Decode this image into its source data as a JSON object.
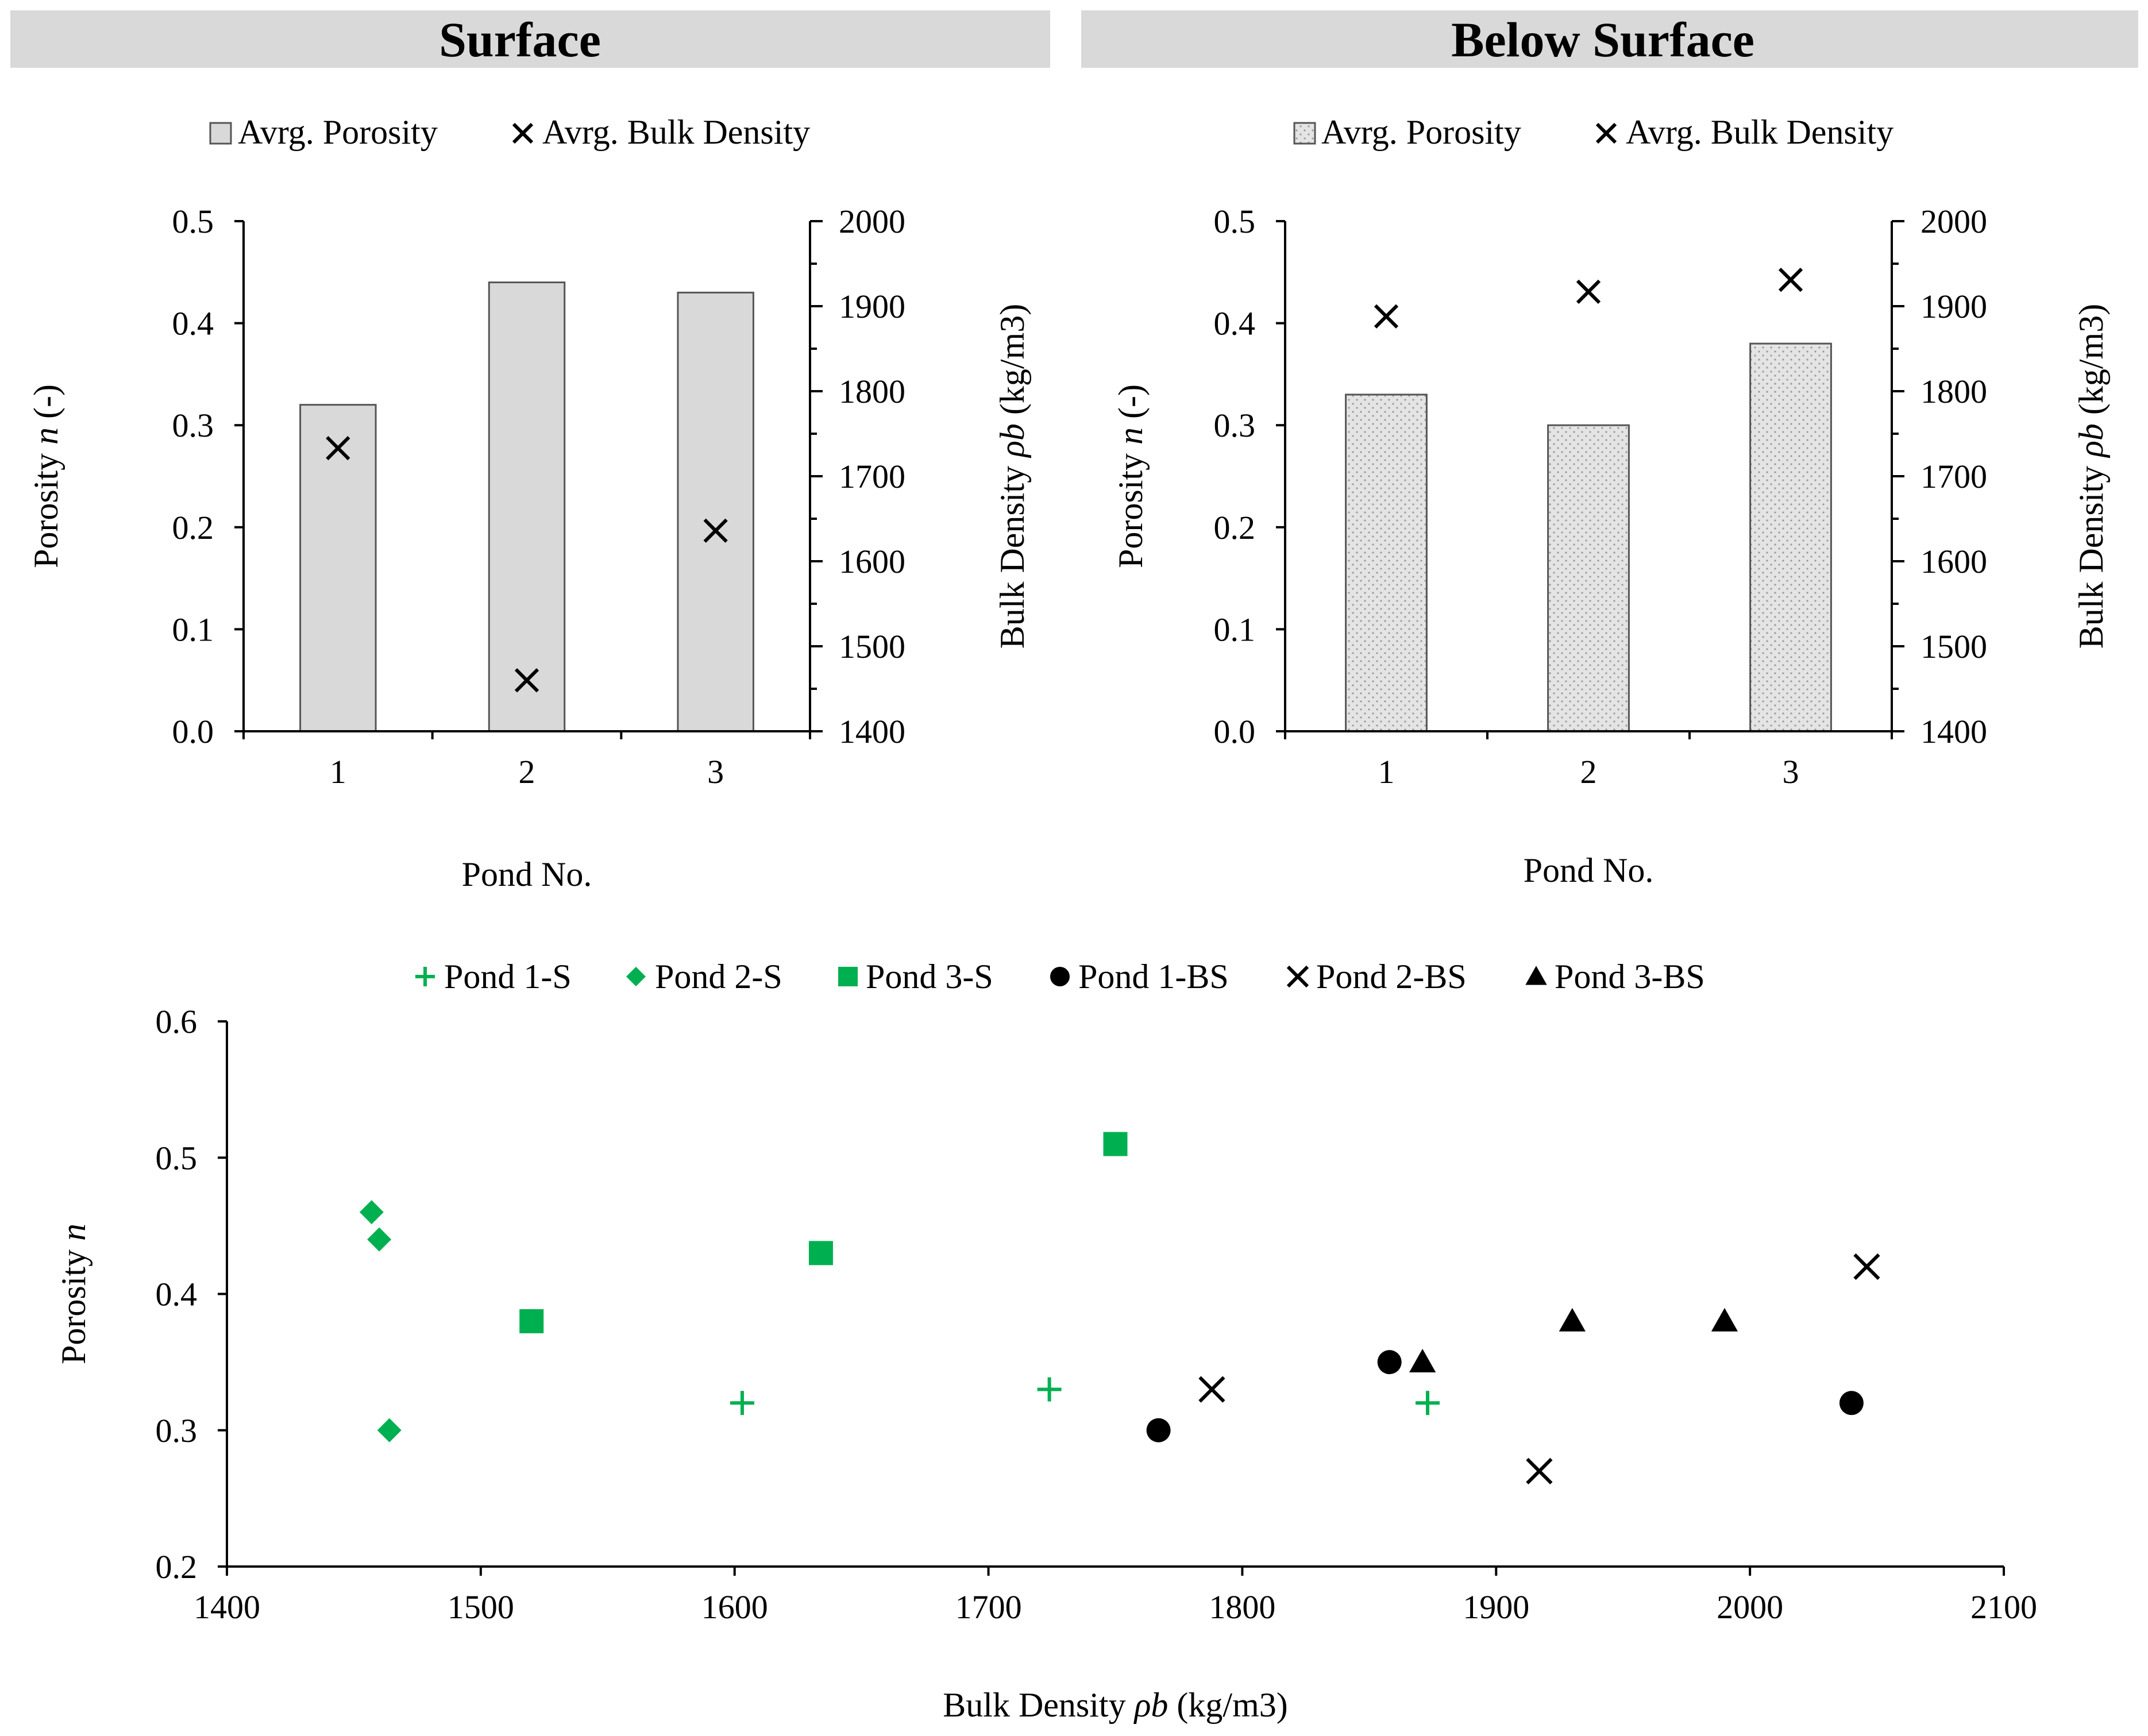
{
  "colors": {
    "green": "#00b050",
    "black": "#000000",
    "bar_fill": "#d9d9d9",
    "header_fill": "#d9d9d9"
  },
  "chart_data": [
    {
      "id": "surface",
      "type": "bar",
      "title": "Surface",
      "categories": [
        "1",
        "2",
        "3"
      ],
      "series": [
        {
          "name": "Avrg. Porosity",
          "kind": "bar",
          "axis": "left",
          "values": [
            0.32,
            0.44,
            0.43
          ]
        },
        {
          "name": "Avrg. Bulk Density",
          "kind": "marker",
          "marker": "x",
          "axis": "right",
          "values": [
            1733,
            1460,
            1636
          ]
        }
      ],
      "xlabel": "Pond No.",
      "ylabel_prefix": "Porosity ",
      "ylabel_var": "n",
      "ylabel_suffix": " (-)",
      "y2label_prefix": "Bulk Density ",
      "y2label_var": "ρb",
      "y2label_suffix": "  (kg/m3)",
      "ylim": [
        0,
        0.5
      ],
      "yticks": [
        "0.0",
        "0.1",
        "0.2",
        "0.3",
        "0.4",
        "0.5"
      ],
      "y2lim": [
        1400,
        2000
      ],
      "y2ticks": [
        "1400",
        "1500",
        "1600",
        "1700",
        "1800",
        "1900",
        "2000"
      ],
      "bar_pattern": "solid",
      "legend_position": "top"
    },
    {
      "id": "below",
      "type": "bar",
      "title": "Below Surface",
      "categories": [
        "1",
        "2",
        "3"
      ],
      "series": [
        {
          "name": "Avrg. Porosity",
          "kind": "bar",
          "axis": "left",
          "values": [
            0.33,
            0.3,
            0.38
          ]
        },
        {
          "name": "Avrg. Bulk Density",
          "kind": "marker",
          "marker": "x",
          "axis": "right",
          "values": [
            1888,
            1917,
            1931
          ]
        }
      ],
      "xlabel": "Pond No.",
      "ylabel_prefix": "Porosity ",
      "ylabel_var": "n",
      "ylabel_suffix": " (-)",
      "y2label_prefix": "Bulk Density ",
      "y2label_var": "ρb",
      "y2label_suffix": "  (kg/m3)",
      "ylim": [
        0,
        0.5
      ],
      "yticks": [
        "0.0",
        "0.1",
        "0.2",
        "0.3",
        "0.4",
        "0.5"
      ],
      "y2lim": [
        1400,
        2000
      ],
      "y2ticks": [
        "1400",
        "1500",
        "1600",
        "1700",
        "1800",
        "1900",
        "2000"
      ],
      "bar_pattern": "dotted",
      "legend_position": "top"
    },
    {
      "id": "scatter",
      "type": "scatter",
      "title": "",
      "xlabel_prefix": "Bulk Density ",
      "xlabel_var": "ρb",
      "xlabel_suffix": " (kg/m3)",
      "ylabel_prefix": "Porosity ",
      "ylabel_var": "n",
      "xlim": [
        1400,
        2100
      ],
      "xticks": [
        "1400",
        "1500",
        "1600",
        "1700",
        "1800",
        "1900",
        "2000",
        "2100"
      ],
      "ylim": [
        0.2,
        0.6
      ],
      "yticks": [
        "0.2",
        "0.3",
        "0.4",
        "0.5",
        "0.6"
      ],
      "legend_position": "top",
      "series": [
        {
          "name": "Pond 1-S",
          "marker": "plus",
          "color": "#00b050",
          "x": [
            1603,
            1724,
            1873
          ],
          "y": [
            0.32,
            0.33,
            0.32
          ]
        },
        {
          "name": "Pond 2-S",
          "marker": "diamond",
          "color": "#00b050",
          "x": [
            1457,
            1460,
            1464
          ],
          "y": [
            0.46,
            0.44,
            0.3
          ]
        },
        {
          "name": "Pond 3-S",
          "marker": "square",
          "color": "#00b050",
          "x": [
            1520,
            1634,
            1750
          ],
          "y": [
            0.38,
            0.43,
            0.51
          ]
        },
        {
          "name": "Pond 1-BS",
          "marker": "circle",
          "color": "#000000",
          "x": [
            1767,
            1858,
            2040
          ],
          "y": [
            0.3,
            0.35,
            0.32
          ]
        },
        {
          "name": "Pond 2-BS",
          "marker": "x",
          "color": "#000000",
          "x": [
            1788,
            1917,
            2046
          ],
          "y": [
            0.33,
            0.27,
            0.42
          ]
        },
        {
          "name": "Pond 3-BS",
          "marker": "triangle",
          "color": "#000000",
          "x": [
            1871,
            1930,
            1990
          ],
          "y": [
            0.35,
            0.38,
            0.38
          ]
        }
      ]
    }
  ]
}
